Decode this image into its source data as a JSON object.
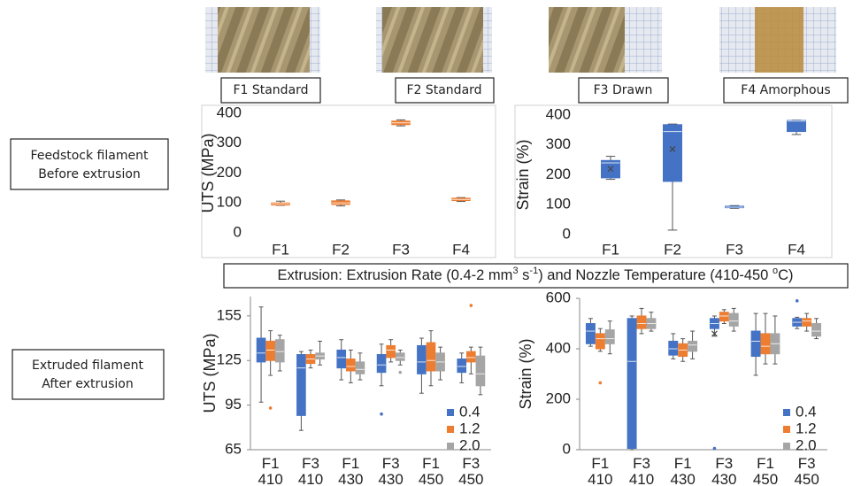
{
  "photo_labels": [
    "F1 Standard",
    "F2 Standard",
    "F3 Drawn",
    "F4 Amorphous"
  ],
  "row_labels": [
    [
      "Feedstock filament",
      "Before extrusion"
    ],
    [
      "Extruded filament",
      "After extrusion"
    ]
  ],
  "banner": [
    "Extrusion: Extrusion Rate (0.4-2 mm",
    "3",
    " s",
    "-1",
    ") and Nozzle Temperature (410-450 ",
    "o",
    "C)"
  ],
  "chart_data": [
    {
      "type": "box",
      "y_label": "UTS (MPa)",
      "categories": [
        "F1",
        "F2",
        "F3",
        "F4"
      ],
      "color": "#ed7d31",
      "ylim": [
        0,
        400
      ],
      "yticks": [
        0,
        100,
        200,
        300,
        400
      ],
      "values": [
        {
          "min": 92,
          "q1": 93,
          "median": 97,
          "q3": 100,
          "max": 106
        },
        {
          "min": 90,
          "q1": 95,
          "median": 100,
          "q3": 107,
          "max": 110
        },
        {
          "min": 358,
          "q1": 362,
          "median": 368,
          "q3": 374,
          "max": 378
        },
        {
          "min": 105,
          "q1": 108,
          "median": 112,
          "q3": 116,
          "max": 118
        }
      ]
    },
    {
      "type": "box",
      "y_label": "Strain (%)",
      "categories": [
        "F1",
        "F2",
        "F3",
        "F4"
      ],
      "color": "#4472c4",
      "ylim": [
        0,
        400
      ],
      "yticks": [
        0,
        100,
        200,
        300,
        400
      ],
      "values": [
        {
          "min": 185,
          "q1": 190,
          "median": 240,
          "q3": 248,
          "max": 262,
          "mean": 220
        },
        {
          "min": 15,
          "q1": 178,
          "median": 345,
          "q3": 368,
          "max": 370,
          "mean": 286
        },
        {
          "min": 88,
          "q1": 90,
          "median": 92,
          "q3": 95,
          "max": 97
        },
        {
          "min": 335,
          "q1": 345,
          "median": 380,
          "q3": 382,
          "max": 383
        }
      ]
    },
    {
      "type": "box",
      "y_label": "UTS (MPa)",
      "legend": "lower right",
      "categories": [
        [
          "F1",
          "410"
        ],
        [
          "F3",
          "410"
        ],
        [
          "F1",
          "430"
        ],
        [
          "F3",
          "430"
        ],
        [
          "F1",
          "450"
        ],
        [
          "F3",
          "450"
        ]
      ],
      "ylim": [
        65,
        168
      ],
      "yticks": [
        65,
        95,
        125,
        155
      ],
      "series": [
        {
          "name": "0.4",
          "color": "#4472c4",
          "values": [
            {
              "min": 97,
              "q1": 124,
              "median": 130,
              "q3": 140,
              "max": 161
            },
            {
              "min": 78,
              "q1": 88,
              "median": 120,
              "q3": 129,
              "max": 131
            },
            {
              "min": 112,
              "q1": 120,
              "median": 127,
              "q3": 132,
              "max": 139
            },
            {
              "min": 108,
              "q1": 117,
              "median": 122,
              "q3": 129,
              "max": 136,
              "outliers": [
                89
              ]
            },
            {
              "min": 103,
              "q1": 116,
              "median": 124,
              "q3": 135,
              "max": 140
            },
            {
              "min": 110,
              "q1": 117,
              "median": 121,
              "q3": 126,
              "max": 130
            }
          ]
        },
        {
          "name": "1.2",
          "color": "#ed7d31",
          "values": [
            {
              "min": 115,
              "q1": 125,
              "median": 132,
              "q3": 138,
              "max": 145,
              "outliers": [
                93
              ]
            },
            {
              "min": 120,
              "q1": 123,
              "median": 126,
              "q3": 129,
              "max": 132
            },
            {
              "min": 110,
              "q1": 118,
              "median": 121,
              "q3": 126,
              "max": 132
            },
            {
              "min": 124,
              "q1": 127,
              "median": 132,
              "q3": 135,
              "max": 139
            },
            {
              "min": 108,
              "q1": 118,
              "median": 125,
              "q3": 137,
              "max": 145
            },
            {
              "min": 116,
              "q1": 124,
              "median": 127,
              "q3": 131,
              "max": 134,
              "outliers": [
                162
              ]
            }
          ]
        },
        {
          "name": "2.0",
          "color": "#a5a5a5",
          "values": [
            {
              "min": 118,
              "q1": 124,
              "median": 131,
              "q3": 139,
              "max": 142
            },
            {
              "min": 122,
              "q1": 126,
              "median": 128,
              "q3": 130,
              "max": 138
            },
            {
              "min": 112,
              "q1": 116,
              "median": 119,
              "q3": 124,
              "max": 130
            },
            {
              "min": 122,
              "q1": 125,
              "median": 127,
              "q3": 130,
              "max": 132,
              "outliers": [
                117
              ]
            },
            {
              "min": 112,
              "q1": 118,
              "median": 124,
              "q3": 130,
              "max": 134
            },
            {
              "min": 102,
              "q1": 108,
              "median": 116,
              "q3": 128,
              "max": 134
            }
          ]
        }
      ]
    },
    {
      "type": "box",
      "y_label": "Strain (%)",
      "legend": "lower right",
      "categories": [
        [
          "F1",
          "410"
        ],
        [
          "F3",
          "410"
        ],
        [
          "F1",
          "430"
        ],
        [
          "F3",
          "430"
        ],
        [
          "F1",
          "450"
        ],
        [
          "F3",
          "450"
        ]
      ],
      "ylim": [
        0,
        600
      ],
      "yticks": [
        0,
        200,
        400,
        600
      ],
      "series": [
        {
          "name": "0.4",
          "color": "#4472c4",
          "values": [
            {
              "min": 410,
              "q1": 420,
              "median": 470,
              "q3": 500,
              "max": 520
            },
            {
              "min": 0,
              "q1": 5,
              "median": 350,
              "q3": 520,
              "max": 530
            },
            {
              "min": 360,
              "q1": 375,
              "median": 400,
              "q3": 430,
              "max": 460
            },
            {
              "min": 450,
              "q1": 480,
              "median": 500,
              "q3": 520,
              "max": 530,
              "mean": 460,
              "outliers": [
                5
              ]
            },
            {
              "min": 295,
              "q1": 370,
              "median": 430,
              "q3": 470,
              "max": 540
            },
            {
              "min": 480,
              "q1": 490,
              "median": 505,
              "q3": 520,
              "max": 525,
              "outliers": [
                590
              ]
            }
          ]
        },
        {
          "name": "1.2",
          "color": "#ed7d31",
          "values": [
            {
              "min": 390,
              "q1": 400,
              "median": 440,
              "q3": 460,
              "max": 480,
              "outliers": [
                265
              ]
            },
            {
              "min": 460,
              "q1": 480,
              "median": 500,
              "q3": 530,
              "max": 560
            },
            {
              "min": 350,
              "q1": 370,
              "median": 395,
              "q3": 420,
              "max": 440
            },
            {
              "min": 500,
              "q1": 510,
              "median": 530,
              "q3": 545,
              "max": 555
            },
            {
              "min": 340,
              "q1": 380,
              "median": 410,
              "q3": 460,
              "max": 540
            },
            {
              "min": 470,
              "q1": 490,
              "median": 510,
              "q3": 520,
              "max": 540
            }
          ]
        },
        {
          "name": "2.0",
          "color": "#a5a5a5",
          "values": [
            {
              "min": 380,
              "q1": 420,
              "median": 440,
              "q3": 475,
              "max": 510
            },
            {
              "min": 470,
              "q1": 480,
              "median": 500,
              "q3": 520,
              "max": 545
            },
            {
              "min": 360,
              "q1": 390,
              "median": 415,
              "q3": 430,
              "max": 470
            },
            {
              "min": 470,
              "q1": 490,
              "median": 510,
              "q3": 540,
              "max": 560
            },
            {
              "min": 340,
              "q1": 380,
              "median": 420,
              "q3": 460,
              "max": 530
            },
            {
              "min": 440,
              "q1": 450,
              "median": 470,
              "q3": 500,
              "max": 520
            }
          ]
        }
      ]
    }
  ]
}
